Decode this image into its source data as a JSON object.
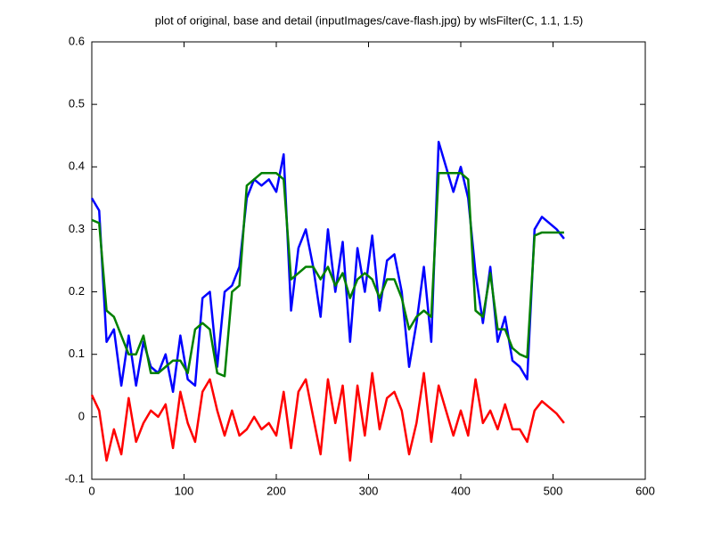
{
  "chart_data": {
    "type": "line",
    "title": "plot of original, base and detail (inputImages/cave-flash.jpg) by wlsFilter(C, 1.1, 1.5)",
    "x": [
      0,
      8,
      16,
      24,
      32,
      40,
      48,
      56,
      64,
      72,
      80,
      88,
      96,
      104,
      112,
      120,
      128,
      136,
      144,
      152,
      160,
      168,
      176,
      184,
      192,
      200,
      208,
      216,
      224,
      232,
      240,
      248,
      256,
      264,
      272,
      280,
      288,
      296,
      304,
      312,
      320,
      328,
      336,
      344,
      352,
      360,
      368,
      376,
      384,
      392,
      400,
      408,
      416,
      424,
      432,
      440,
      448,
      456,
      464,
      472,
      480,
      488,
      496,
      504,
      512
    ],
    "series": [
      {
        "color": "#0000ff",
        "values": [
          0.35,
          0.33,
          0.12,
          0.14,
          0.05,
          0.13,
          0.05,
          0.12,
          0.08,
          0.07,
          0.1,
          0.04,
          0.13,
          0.06,
          0.05,
          0.19,
          0.2,
          0.08,
          0.2,
          0.21,
          0.24,
          0.35,
          0.38,
          0.37,
          0.38,
          0.36,
          0.42,
          0.17,
          0.27,
          0.3,
          0.24,
          0.16,
          0.3,
          0.2,
          0.28,
          0.12,
          0.27,
          0.2,
          0.29,
          0.17,
          0.25,
          0.26,
          0.2,
          0.08,
          0.15,
          0.24,
          0.12,
          0.44,
          0.4,
          0.36,
          0.4,
          0.35,
          0.23,
          0.15,
          0.24,
          0.12,
          0.16,
          0.09,
          0.08,
          0.06,
          0.3,
          0.32,
          0.31,
          0.3,
          0.285
        ]
      },
      {
        "color": "#008000",
        "values": [
          0.315,
          0.31,
          0.17,
          0.16,
          0.13,
          0.1,
          0.1,
          0.13,
          0.07,
          0.07,
          0.08,
          0.09,
          0.09,
          0.07,
          0.14,
          0.15,
          0.14,
          0.07,
          0.065,
          0.2,
          0.21,
          0.37,
          0.38,
          0.39,
          0.39,
          0.39,
          0.38,
          0.22,
          0.23,
          0.24,
          0.24,
          0.22,
          0.24,
          0.21,
          0.23,
          0.19,
          0.22,
          0.23,
          0.22,
          0.19,
          0.22,
          0.22,
          0.19,
          0.14,
          0.16,
          0.17,
          0.16,
          0.39,
          0.39,
          0.39,
          0.39,
          0.38,
          0.17,
          0.16,
          0.23,
          0.14,
          0.14,
          0.11,
          0.1,
          0.095,
          0.29,
          0.295,
          0.295,
          0.295,
          0.295
        ]
      },
      {
        "color": "#ff0000",
        "values": [
          0.035,
          0.01,
          -0.07,
          -0.02,
          -0.06,
          0.03,
          -0.04,
          -0.01,
          0.01,
          0.0,
          0.02,
          -0.05,
          0.04,
          -0.01,
          -0.04,
          0.04,
          0.06,
          0.01,
          -0.03,
          0.01,
          -0.03,
          -0.02,
          0.0,
          -0.02,
          -0.01,
          -0.03,
          0.04,
          -0.05,
          0.04,
          0.06,
          0.0,
          -0.06,
          0.06,
          -0.01,
          0.05,
          -0.07,
          0.05,
          -0.03,
          0.07,
          -0.02,
          0.03,
          0.04,
          0.01,
          -0.06,
          -0.01,
          0.07,
          -0.04,
          0.05,
          0.01,
          -0.03,
          0.01,
          -0.03,
          0.06,
          -0.01,
          0.01,
          -0.02,
          0.02,
          -0.02,
          -0.02,
          -0.04,
          0.01,
          0.025,
          0.015,
          0.005,
          -0.01
        ]
      }
    ],
    "xlim": [
      0,
      600
    ],
    "xticks": [
      0,
      100,
      200,
      300,
      400,
      500,
      600
    ],
    "ylim": [
      -0.1,
      0.6
    ],
    "yticks": [
      -0.1,
      0,
      0.1,
      0.2,
      0.3,
      0.4,
      0.5,
      0.6
    ],
    "grid": false
  }
}
